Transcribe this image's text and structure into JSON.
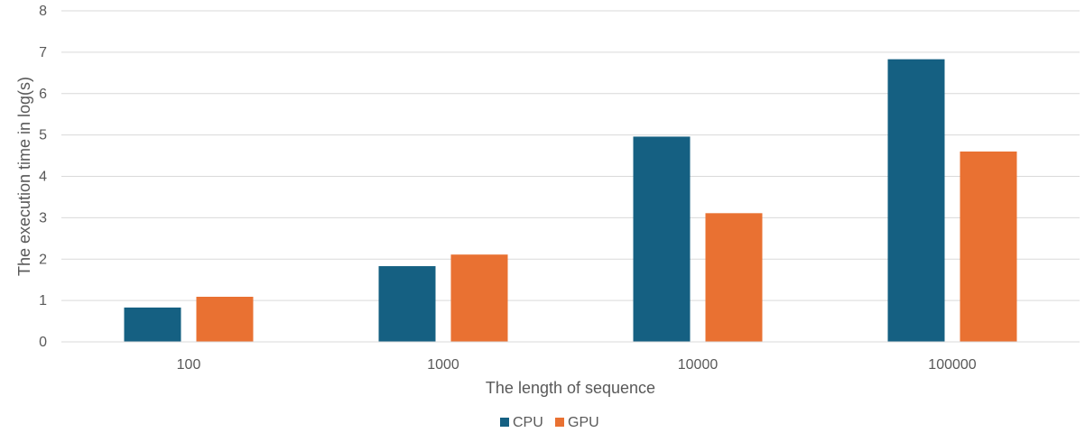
{
  "chart_data": {
    "type": "bar",
    "title": "",
    "xlabel": "The length of sequence",
    "ylabel": "The execution time in log(s)",
    "categories": [
      "100",
      "1000",
      "10000",
      "100000"
    ],
    "series": [
      {
        "name": "CPU",
        "color": "#156082",
        "values": [
          0.83,
          1.83,
          4.96,
          6.83
        ]
      },
      {
        "name": "GPU",
        "color": "#E97132",
        "values": [
          1.09,
          2.11,
          3.11,
          4.6
        ]
      }
    ],
    "ylim": [
      0,
      8
    ],
    "yticks": [
      "0",
      "1",
      "2",
      "3",
      "4",
      "5",
      "6",
      "7",
      "8"
    ],
    "grid": true,
    "legend_position": "bottom"
  }
}
